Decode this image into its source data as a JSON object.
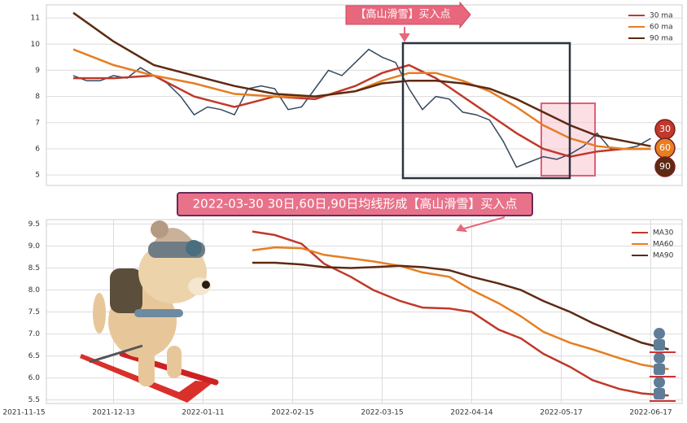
{
  "chart_data": [
    {
      "type": "line",
      "annotation": "【高山滑雪】买入点",
      "x": [
        11,
        14,
        17,
        20,
        23,
        26,
        29,
        32,
        35,
        38,
        41,
        44,
        47,
        50,
        53,
        56,
        59,
        62,
        65,
        68,
        71,
        74,
        77,
        80,
        83,
        86,
        89,
        92,
        95,
        98,
        101,
        104,
        107,
        110,
        113,
        116,
        119,
        122,
        125,
        128,
        131,
        134,
        137,
        140
      ],
      "values": [
        8.8,
        8.6,
        8.6,
        8.8,
        8.7,
        9.1,
        8.8,
        8.5,
        8.0,
        7.3,
        7.6,
        7.5,
        7.3,
        8.3,
        8.4,
        8.3,
        7.5,
        7.6,
        8.3,
        9.0,
        8.8,
        9.3,
        9.8,
        9.5,
        9.3,
        8.3,
        7.5,
        8.0,
        7.9,
        7.4,
        7.3,
        7.1,
        6.3,
        5.3,
        5.5,
        5.7,
        5.6,
        5.8,
        6.1,
        6.6,
        6.0,
        6.0,
        6.1,
        6.4
      ],
      "color": "#34495e",
      "series": [
        {
          "name": "30 ma",
          "badge": "30",
          "color": "#c0392b",
          "x": [
            11,
            20,
            29,
            38,
            47,
            56,
            65,
            74,
            80,
            86,
            92,
            98,
            104,
            110,
            116,
            122,
            128,
            134,
            140
          ],
          "values": [
            8.7,
            8.7,
            8.8,
            8.0,
            7.6,
            8.0,
            7.9,
            8.4,
            8.9,
            9.2,
            8.7,
            8.0,
            7.3,
            6.6,
            6.0,
            5.7,
            5.9,
            6.0,
            6.0
          ]
        },
        {
          "name": "60 ma",
          "badge": "60",
          "color": "#e67e22",
          "x": [
            11,
            20,
            29,
            38,
            47,
            56,
            65,
            74,
            80,
            86,
            92,
            98,
            104,
            110,
            116,
            122,
            128,
            134,
            140
          ],
          "values": [
            9.8,
            9.2,
            8.8,
            8.5,
            8.1,
            8.0,
            8.0,
            8.2,
            8.6,
            8.9,
            8.9,
            8.6,
            8.2,
            7.6,
            6.9,
            6.4,
            6.1,
            6.0,
            6.0
          ]
        },
        {
          "name": "90 ma",
          "badge": "90",
          "color": "#5d2a12",
          "x": [
            11,
            20,
            29,
            38,
            47,
            56,
            65,
            74,
            80,
            86,
            92,
            98,
            104,
            110,
            116,
            122,
            128,
            134,
            140
          ],
          "values": [
            11.2,
            10.1,
            9.2,
            8.8,
            8.4,
            8.1,
            8.0,
            8.2,
            8.5,
            8.6,
            8.6,
            8.5,
            8.3,
            7.9,
            7.4,
            6.9,
            6.5,
            6.3,
            6.1
          ]
        }
      ],
      "xlim": [
        5,
        147
      ],
      "ylim": [
        4.6,
        11.5
      ],
      "yticks": [
        5,
        6,
        7,
        8,
        9,
        10,
        11
      ],
      "grid": true
    },
    {
      "type": "line",
      "title": "2022-03-30 30日,60日,90日均线形成【高山滑雪】买入点",
      "x": [
        51,
        56,
        62,
        67,
        73,
        78,
        84,
        89,
        95,
        100,
        106,
        111,
        116,
        122,
        127,
        133,
        138,
        144
      ],
      "series": [
        {
          "name": "MA30",
          "color": "#c0392b",
          "values": [
            9.33,
            9.25,
            9.05,
            8.6,
            8.3,
            8.0,
            7.75,
            7.6,
            7.58,
            7.5,
            7.1,
            6.9,
            6.55,
            6.25,
            5.95,
            5.75,
            5.65,
            5.6
          ]
        },
        {
          "name": "MA60",
          "color": "#e67e22",
          "values": [
            8.9,
            8.97,
            8.95,
            8.8,
            8.72,
            8.65,
            8.55,
            8.4,
            8.3,
            8.0,
            7.7,
            7.4,
            7.05,
            6.8,
            6.65,
            6.45,
            6.3,
            6.2
          ]
        },
        {
          "name": "MA90",
          "color": "#5d2a12",
          "values": [
            8.62,
            8.62,
            8.58,
            8.52,
            8.5,
            8.52,
            8.55,
            8.52,
            8.45,
            8.3,
            8.15,
            8.0,
            7.75,
            7.5,
            7.25,
            7.0,
            6.8,
            6.65
          ]
        }
      ],
      "xlim": [
        5,
        147
      ],
      "ylim": [
        5.42,
        9.6
      ],
      "yticks": [
        5.5,
        {
          "value": 6,
          "label": "6.0"
        },
        6.5,
        {
          "value": 7,
          "label": "7.0"
        },
        7.5,
        {
          "value": 8,
          "label": "8.0"
        },
        8.5,
        {
          "value": 9,
          "label": "9.0"
        },
        9.5
      ],
      "xticks": [
        {
          "value": 0,
          "label": "2021-11-15"
        },
        {
          "value": 20,
          "label": "2021-12-13"
        },
        {
          "value": 40,
          "label": "2022-01-11"
        },
        {
          "value": 60,
          "label": "2022-02-15"
        },
        {
          "value": 80,
          "label": "2022-03-15"
        },
        {
          "value": 100,
          "label": "2022-04-14"
        },
        {
          "value": 120,
          "label": "2022-05-17"
        },
        {
          "value": 140,
          "label": "2022-06-17"
        }
      ],
      "grid": true
    }
  ]
}
